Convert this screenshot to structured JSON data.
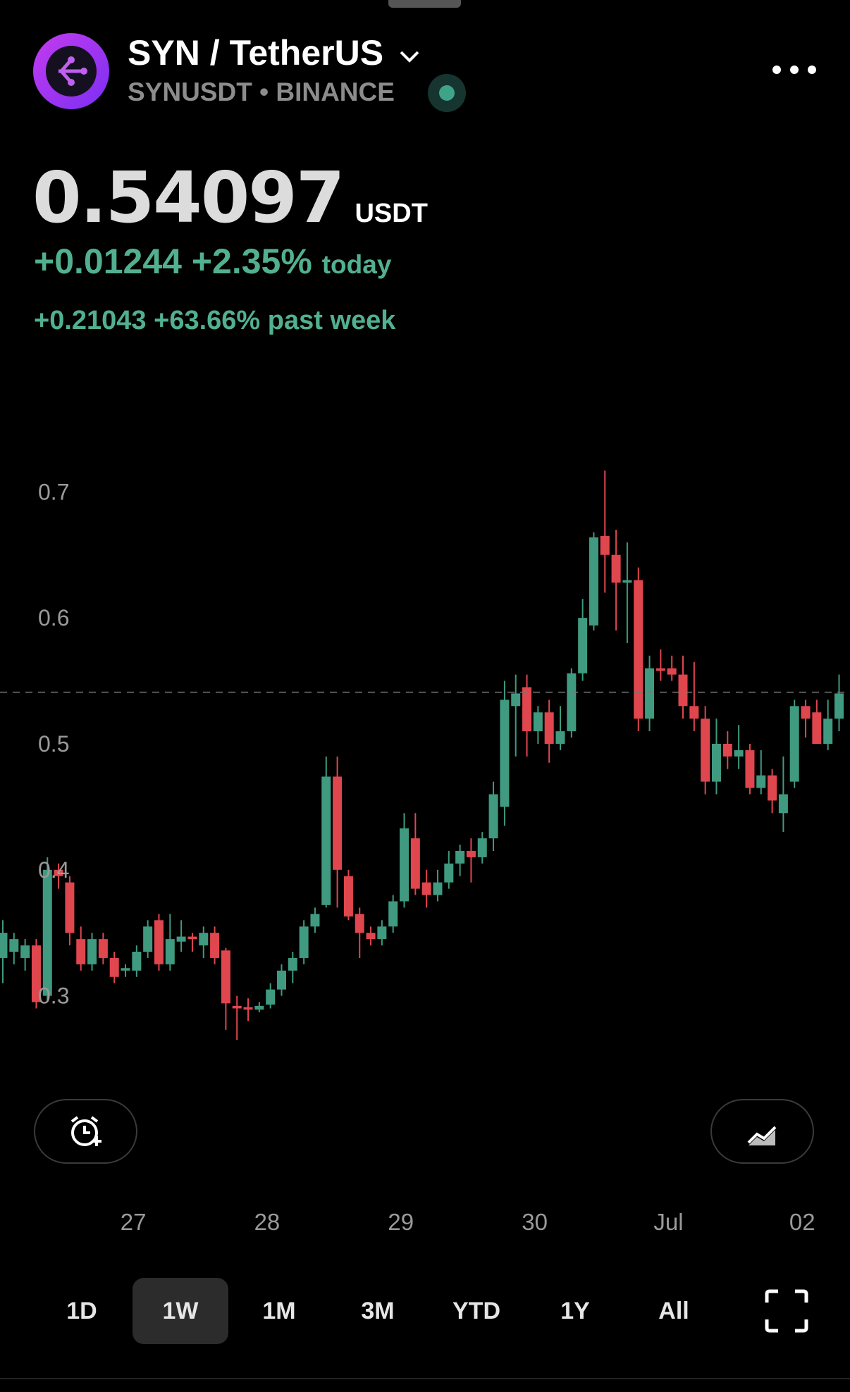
{
  "header": {
    "symbol_title": "SYN / TetherUS",
    "ticker": "SYNUSDT",
    "separator": "•",
    "exchange": "BINANCE",
    "price": 0.54097,
    "currency": "USDT",
    "change_today": "+0.01244",
    "change_today_pct": "+2.35%",
    "today_label": "today",
    "change_week": "+0.21043",
    "change_week_pct": "+63.66%",
    "week_label": "past week"
  },
  "chart_data": {
    "type": "candlestick",
    "open": [
      0.33,
      0.335,
      0.33,
      0.34,
      0.3,
      0.4,
      0.39,
      0.345,
      0.325,
      0.345,
      0.33,
      0.32,
      0.32,
      0.335,
      0.36,
      0.325,
      0.343,
      0.347,
      0.34,
      0.35,
      0.336,
      0.292,
      0.291,
      0.289,
      0.293,
      0.305,
      0.32,
      0.33,
      0.355,
      0.372,
      0.474,
      0.395,
      0.365,
      0.35,
      0.345,
      0.355,
      0.375,
      0.425,
      0.39,
      0.38,
      0.39,
      0.405,
      0.415,
      0.41,
      0.425,
      0.45,
      0.53,
      0.545,
      0.51,
      0.525,
      0.5,
      0.51,
      0.556,
      0.594,
      0.665,
      0.65,
      0.628,
      0.63,
      0.52,
      0.56,
      0.56,
      0.555,
      0.53,
      0.52,
      0.47,
      0.5,
      0.49,
      0.495,
      0.465,
      0.475,
      0.445,
      0.47,
      0.53,
      0.525,
      0.5,
      0.52
    ],
    "high": [
      0.36,
      0.35,
      0.345,
      0.345,
      0.41,
      0.405,
      0.395,
      0.355,
      0.35,
      0.35,
      0.335,
      0.325,
      0.34,
      0.36,
      0.365,
      0.365,
      0.36,
      0.35,
      0.355,
      0.355,
      0.338,
      0.3,
      0.298,
      0.295,
      0.31,
      0.325,
      0.335,
      0.36,
      0.37,
      0.49,
      0.49,
      0.4,
      0.37,
      0.355,
      0.36,
      0.38,
      0.445,
      0.445,
      0.4,
      0.4,
      0.415,
      0.42,
      0.425,
      0.43,
      0.47,
      0.55,
      0.555,
      0.555,
      0.53,
      0.535,
      0.53,
      0.56,
      0.615,
      0.668,
      0.717,
      0.67,
      0.66,
      0.64,
      0.57,
      0.575,
      0.57,
      0.57,
      0.565,
      0.53,
      0.52,
      0.51,
      0.515,
      0.5,
      0.495,
      0.48,
      0.49,
      0.535,
      0.535,
      0.535,
      0.535,
      0.555
    ],
    "low": [
      0.31,
      0.325,
      0.32,
      0.29,
      0.295,
      0.385,
      0.34,
      0.32,
      0.32,
      0.325,
      0.31,
      0.315,
      0.315,
      0.33,
      0.32,
      0.32,
      0.335,
      0.335,
      0.33,
      0.325,
      0.273,
      0.265,
      0.28,
      0.287,
      0.29,
      0.3,
      0.31,
      0.325,
      0.35,
      0.37,
      0.37,
      0.36,
      0.33,
      0.34,
      0.34,
      0.35,
      0.37,
      0.38,
      0.37,
      0.375,
      0.385,
      0.395,
      0.39,
      0.405,
      0.415,
      0.435,
      0.49,
      0.49,
      0.5,
      0.485,
      0.495,
      0.505,
      0.55,
      0.59,
      0.62,
      0.59,
      0.58,
      0.51,
      0.51,
      0.55,
      0.55,
      0.52,
      0.51,
      0.46,
      0.46,
      0.48,
      0.48,
      0.46,
      0.46,
      0.445,
      0.43,
      0.465,
      0.505,
      0.5,
      0.495,
      0.51
    ],
    "close": [
      0.35,
      0.345,
      0.34,
      0.295,
      0.4,
      0.395,
      0.35,
      0.325,
      0.345,
      0.33,
      0.315,
      0.322,
      0.335,
      0.355,
      0.325,
      0.345,
      0.347,
      0.345,
      0.35,
      0.33,
      0.294,
      0.29,
      0.289,
      0.292,
      0.305,
      0.32,
      0.33,
      0.355,
      0.365,
      0.474,
      0.4,
      0.363,
      0.35,
      0.345,
      0.355,
      0.375,
      0.433,
      0.385,
      0.38,
      0.39,
      0.405,
      0.415,
      0.41,
      0.425,
      0.46,
      0.535,
      0.54,
      0.51,
      0.525,
      0.5,
      0.51,
      0.556,
      0.6,
      0.664,
      0.65,
      0.628,
      0.63,
      0.52,
      0.56,
      0.558,
      0.555,
      0.53,
      0.52,
      0.47,
      0.5,
      0.49,
      0.495,
      0.465,
      0.475,
      0.455,
      0.46,
      0.53,
      0.52,
      0.5,
      0.52,
      0.54
    ],
    "up_color": "#3f9a80",
    "down_color": "#e0464e",
    "ylim": [
      0.25,
      0.76
    ],
    "yticks": [
      0.3,
      0.4,
      0.5,
      0.6,
      0.7
    ],
    "xticks": [
      {
        "value": 11.7,
        "label": "27"
      },
      {
        "value": 23.7,
        "label": "28"
      },
      {
        "value": 35.7,
        "label": "29"
      },
      {
        "value": 47.7,
        "label": "30"
      },
      {
        "value": 59.7,
        "label": "Jul"
      },
      {
        "value": 71.7,
        "label": "02"
      }
    ]
  },
  "time_ranges": [
    "1D",
    "1W",
    "1M",
    "3M",
    "YTD",
    "1Y",
    "All"
  ],
  "selected_index": 1
}
